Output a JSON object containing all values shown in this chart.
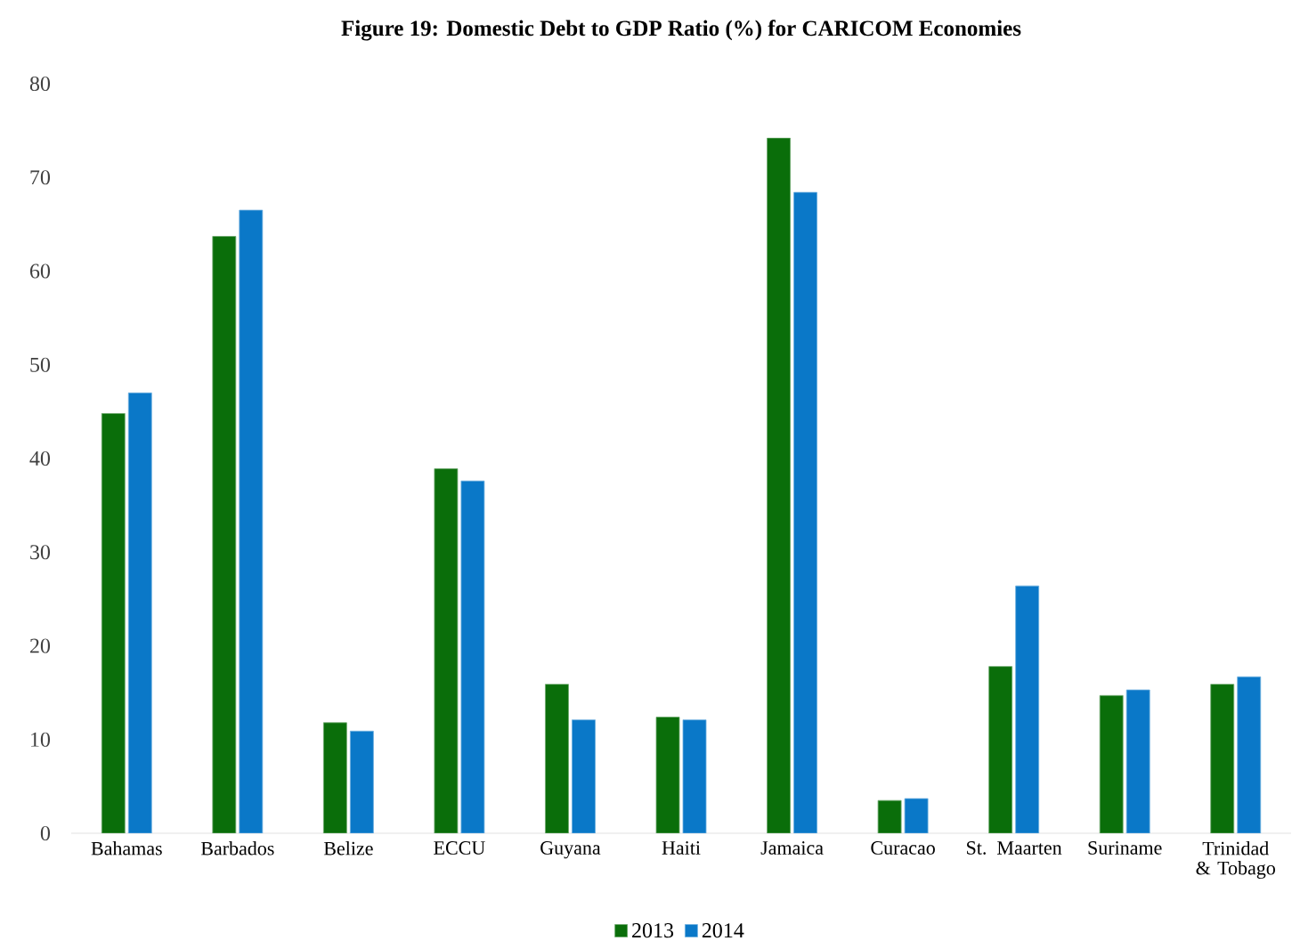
{
  "chart_data": {
    "type": "bar",
    "title": "Figure 19: Domestic Debt to GDP Ratio (%) for CARICOM Economies",
    "categories": [
      "Bahamas",
      "Barbados",
      "Belize",
      "ECCU",
      "Guyana",
      "Haiti",
      "Jamaica",
      "Curacao",
      "St. Maarten",
      "Suriname",
      "Trinidad & Tobago"
    ],
    "series": [
      {
        "name": "2013",
        "color": "#0a6e0a",
        "values": [
          44.8,
          63.7,
          11.8,
          38.9,
          15.9,
          12.4,
          74.2,
          3.5,
          17.8,
          14.7,
          15.9
        ]
      },
      {
        "name": "2014",
        "color": "#0a78c8",
        "values": [
          47.0,
          66.5,
          10.9,
          37.6,
          12.1,
          12.1,
          68.4,
          3.7,
          26.4,
          15.3,
          16.7
        ]
      }
    ],
    "ylim": [
      0,
      80
    ],
    "yticks": [
      0,
      10,
      20,
      30,
      40,
      50,
      60,
      70,
      80
    ],
    "grid": false,
    "legend": "bottom"
  }
}
